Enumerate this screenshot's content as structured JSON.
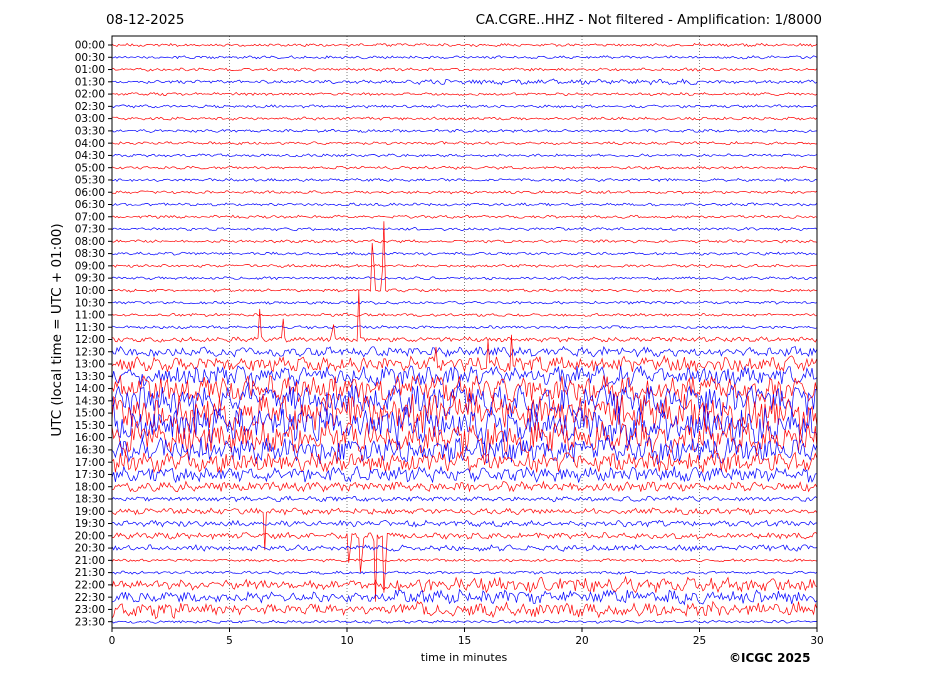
{
  "header": {
    "date": "08-12-2025",
    "station_info": "CA.CGRE..HHZ - Not filtered - Amplification: 1/8000"
  },
  "footer": {
    "copyright": "©ICGC 2025"
  },
  "chart_data": {
    "type": "line",
    "title": "CA.CGRE..HHZ - Not filtered - Amplification: 1/8000",
    "xlabel": "time in minutes",
    "ylabel": "UTC (local time = UTC + 01:00)",
    "xlim": [
      0,
      30
    ],
    "x_ticks": [
      "0",
      "5",
      "10",
      "15",
      "20",
      "25",
      "30"
    ],
    "grid": "vertical dotted at x ticks",
    "trace_colors": [
      "#ff0000",
      "#0000ff"
    ],
    "rows": [
      "00:00",
      "00:30",
      "01:00",
      "01:30",
      "02:00",
      "02:30",
      "03:00",
      "03:30",
      "04:00",
      "04:30",
      "05:00",
      "05:30",
      "06:00",
      "06:30",
      "07:00",
      "07:30",
      "08:00",
      "08:30",
      "09:00",
      "09:30",
      "10:00",
      "10:30",
      "11:00",
      "11:30",
      "12:00",
      "12:30",
      "13:00",
      "13:30",
      "14:00",
      "14:30",
      "15:00",
      "15:30",
      "16:00",
      "16:30",
      "17:00",
      "17:30",
      "18:00",
      "18:30",
      "19:00",
      "19:30",
      "20:00",
      "20:30",
      "21:00",
      "21:30",
      "22:00",
      "22:30",
      "23:00",
      "23:30"
    ]
  }
}
